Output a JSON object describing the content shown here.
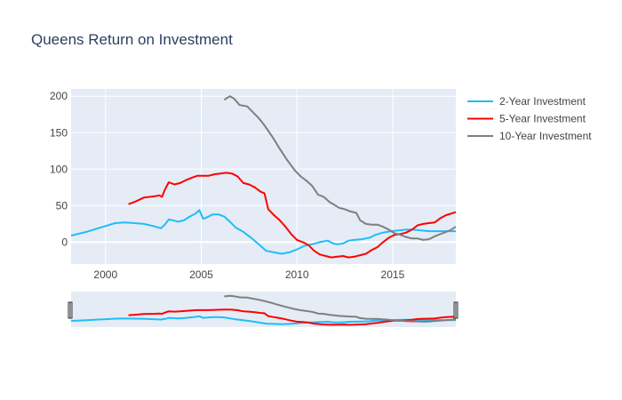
{
  "chart_data": {
    "type": "line",
    "title": "Queens Return on Investment",
    "xlabel": "",
    "ylabel": "",
    "xlim": [
      1998.2,
      2018.3
    ],
    "ylim": [
      -30,
      210
    ],
    "xticks": [
      2000,
      2005,
      2010,
      2015
    ],
    "xtick_labels": [
      "2000",
      "2005",
      "2010",
      "2015"
    ],
    "yticks": [
      0,
      50,
      100,
      150,
      200
    ],
    "ytick_labels": [
      "0",
      "50",
      "100",
      "150",
      "200"
    ],
    "legend_position": "top-right",
    "range_slider": true,
    "colors": {
      "background": "#e5ecf6",
      "grid": "#ffffff",
      "title": "#2a3f5f",
      "tick_text": "#444444"
    },
    "series": [
      {
        "name": "2-Year Investment",
        "color": "#1ebdfa",
        "x": [
          1998.2,
          1999,
          1999.5,
          2000,
          2000.5,
          2001,
          2001.5,
          2002,
          2002.5,
          2002.9,
          2003.1,
          2003.3,
          2003.5,
          2003.8,
          2004.1,
          2004.4,
          2004.7,
          2004.9,
          2005.1,
          2005.3,
          2005.6,
          2005.9,
          2006.2,
          2006.5,
          2006.8,
          2007.2,
          2007.6,
          2008,
          2008.4,
          2008.8,
          2009.2,
          2009.6,
          2010,
          2010.4,
          2010.8,
          2011.2,
          2011.6,
          2011.9,
          2012.1,
          2012.4,
          2012.7,
          2013,
          2013.4,
          2013.8,
          2014.1,
          2014.5,
          2014.9,
          2015.3,
          2015.7,
          2016.1,
          2016.5,
          2016.9,
          2017.3,
          2017.7,
          2018.3
        ],
        "y": [
          9,
          14,
          18,
          22,
          26,
          27,
          26,
          25,
          22,
          19,
          24,
          31,
          30,
          28,
          30,
          35,
          39,
          44,
          32,
          34,
          38,
          38,
          35,
          28,
          20,
          14,
          6,
          -3,
          -12,
          -14,
          -16,
          -14,
          -10,
          -5,
          -3,
          0,
          2,
          -2,
          -3,
          -2,
          2,
          3,
          4,
          6,
          10,
          13,
          15,
          16,
          17,
          17,
          16,
          15,
          15,
          15,
          15
        ]
      },
      {
        "name": "5-Year Investment",
        "color": "#ff0000",
        "x": [
          2001.2,
          2001.6,
          2002,
          2002.3,
          2002.6,
          2002.8,
          2002.95,
          2003.1,
          2003.3,
          2003.6,
          2003.9,
          2004.2,
          2004.5,
          2004.8,
          2005.1,
          2005.4,
          2005.7,
          2006,
          2006.3,
          2006.6,
          2006.9,
          2007.2,
          2007.5,
          2007.8,
          2008.1,
          2008.3,
          2008.5,
          2008.8,
          2009.1,
          2009.4,
          2009.7,
          2010,
          2010.3,
          2010.6,
          2010.9,
          2011.2,
          2011.5,
          2011.8,
          2012.1,
          2012.4,
          2012.7,
          2013,
          2013.3,
          2013.6,
          2013.9,
          2014.2,
          2014.5,
          2014.8,
          2015.1,
          2015.4,
          2015.7,
          2016,
          2016.3,
          2016.6,
          2016.9,
          2017.2,
          2017.5,
          2017.8,
          2018.3
        ],
        "y": [
          52,
          56,
          61,
          62,
          63,
          64,
          62,
          72,
          82,
          79,
          81,
          85,
          88,
          91,
          91,
          91,
          93,
          94,
          95,
          94,
          90,
          81,
          79,
          75,
          69,
          67,
          45,
          37,
          30,
          21,
          11,
          3,
          0,
          -4,
          -12,
          -17,
          -19,
          -21,
          -20,
          -19,
          -21,
          -20,
          -18,
          -16,
          -11,
          -7,
          0,
          6,
          10,
          11,
          13,
          17,
          23,
          25,
          26,
          27,
          33,
          37,
          41
        ]
      },
      {
        "name": "10-Year Investment",
        "color": "#7f7f7f",
        "x": [
          2006.2,
          2006.5,
          2006.7,
          2007,
          2007.4,
          2007.7,
          2008,
          2008.3,
          2008.7,
          2009.1,
          2009.5,
          2009.9,
          2010.2,
          2010.5,
          2010.8,
          2011.1,
          2011.4,
          2011.7,
          2011.9,
          2012.2,
          2012.5,
          2012.8,
          2013.1,
          2013.3,
          2013.6,
          2013.9,
          2014.2,
          2014.5,
          2014.8,
          2015.1,
          2015.4,
          2015.7,
          2016,
          2016.3,
          2016.6,
          2016.9,
          2017.2,
          2017.6,
          2018,
          2018.3
        ],
        "y": [
          195,
          200,
          197,
          188,
          186,
          178,
          170,
          160,
          145,
          128,
          112,
          98,
          90,
          84,
          77,
          65,
          62,
          55,
          52,
          47,
          45,
          42,
          40,
          30,
          25,
          24,
          24,
          21,
          17,
          12,
          10,
          7,
          5,
          5,
          3,
          4,
          8,
          12,
          16,
          21
        ]
      }
    ]
  }
}
